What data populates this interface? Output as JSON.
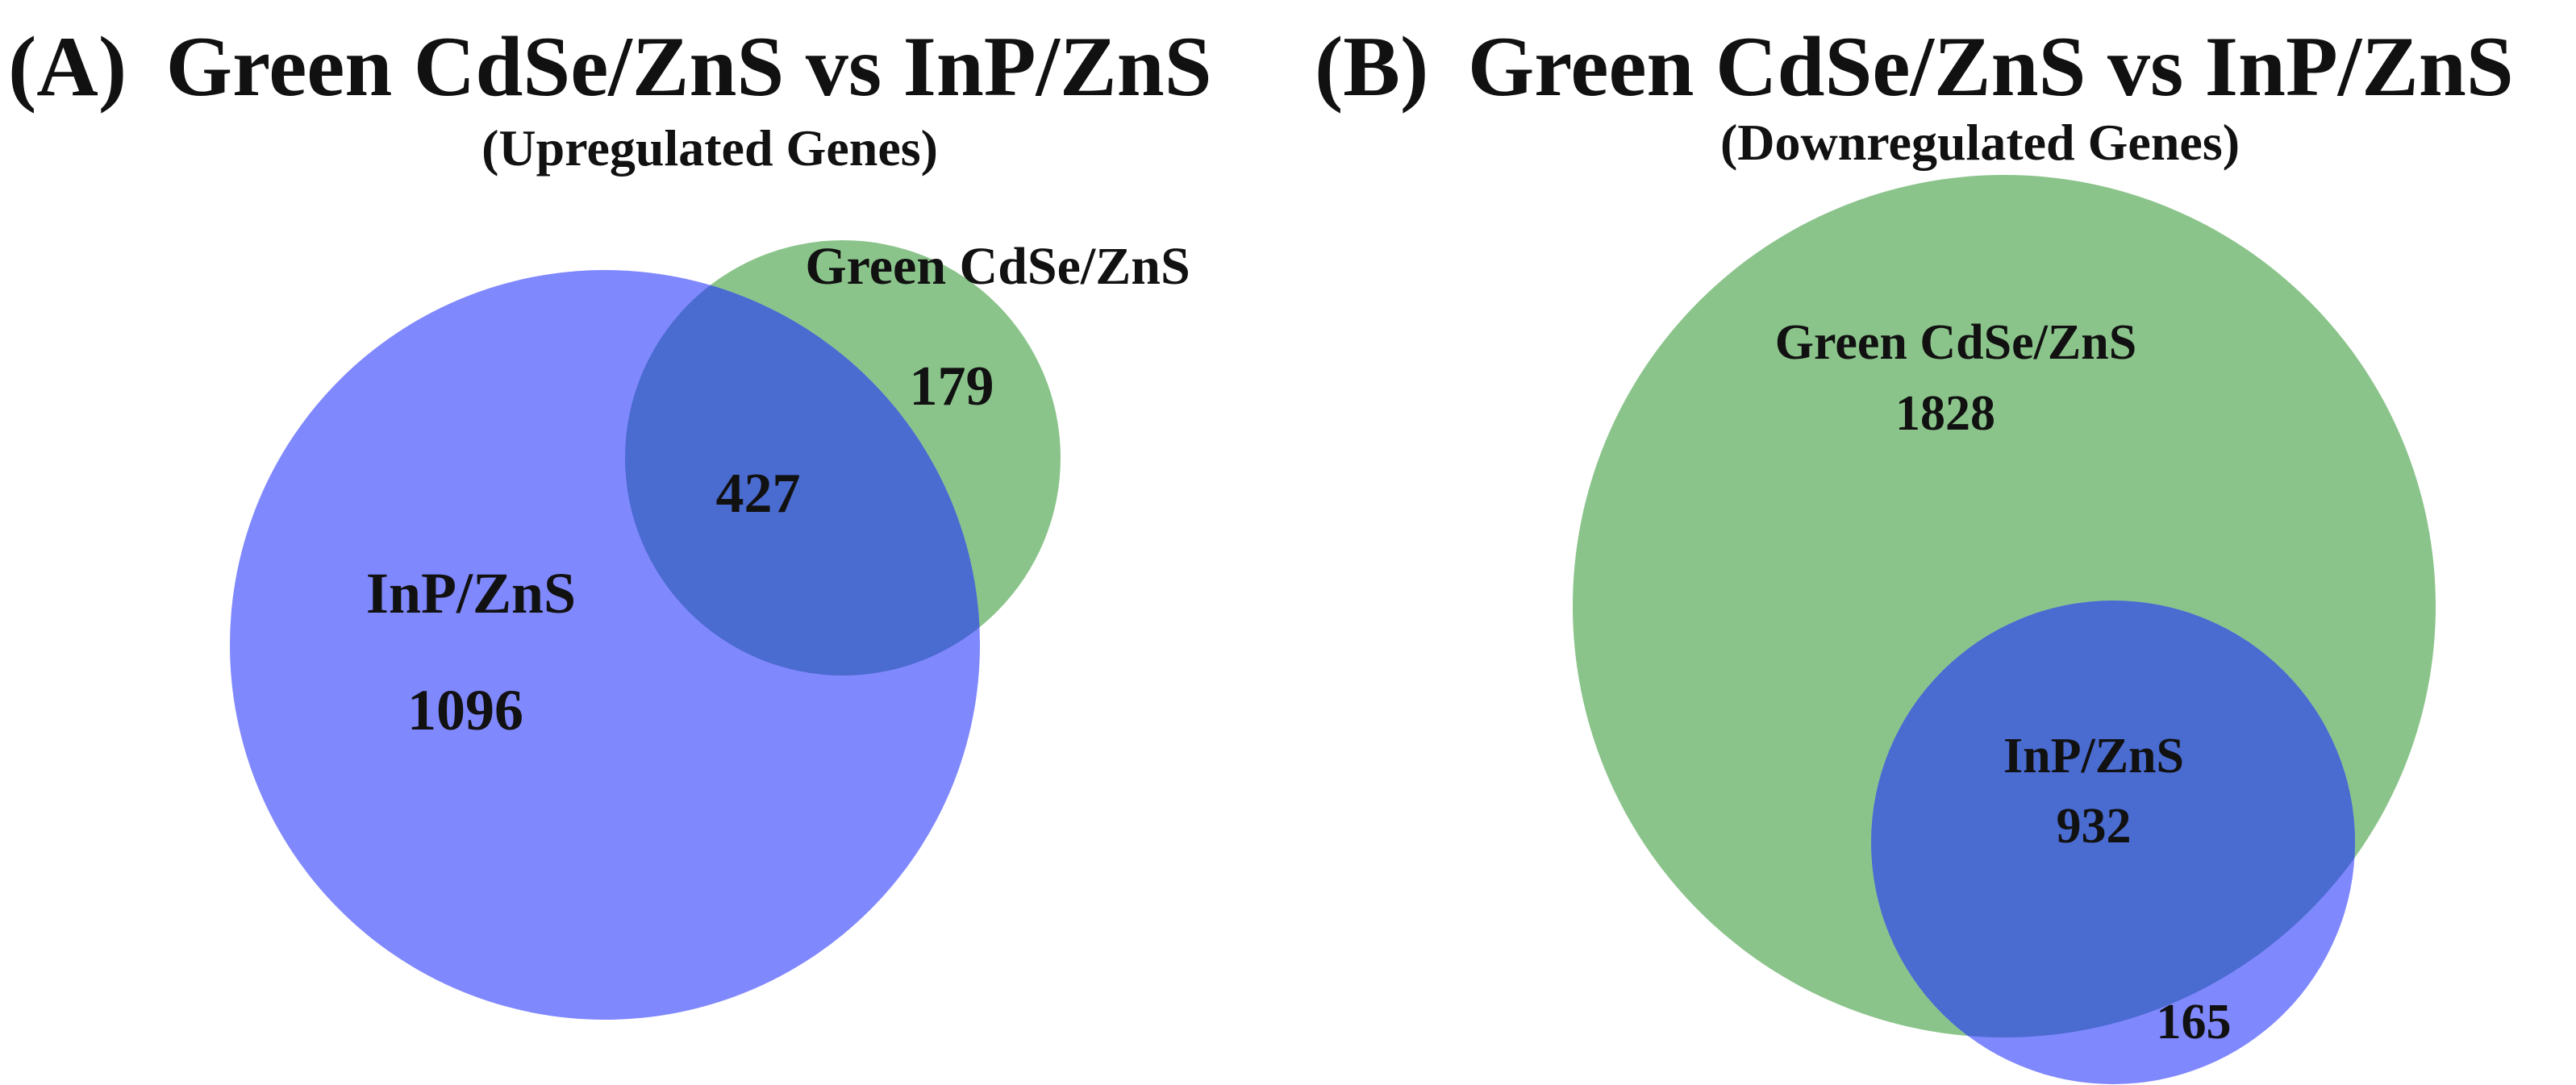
{
  "panels": [
    {
      "label": "(A)",
      "title": "Green CdSe/ZnS vs InP/ZnS",
      "subtitle": "(Upregulated Genes)",
      "sets": [
        {
          "name": "InP/ZnS",
          "only_count": "1096",
          "color": "#8088fd"
        },
        {
          "name": "Green CdSe/ZnS",
          "only_count": "179",
          "color": "#8bc48b"
        }
      ],
      "intersection_count": "427",
      "intersection_color": "#4a6bd0"
    },
    {
      "label": "(B)",
      "title": "Green CdSe/ZnS vs InP/ZnS",
      "subtitle": "(Downregulated Genes)",
      "sets": [
        {
          "name": "Green CdSe/ZnS",
          "only_count": "1828",
          "color": "#8bc48b"
        },
        {
          "name": "InP/ZnS",
          "only_count": "165",
          "color": "#8088fd"
        }
      ],
      "intersection_count": "932",
      "intersection_color": "#4a6bd0"
    }
  ]
}
